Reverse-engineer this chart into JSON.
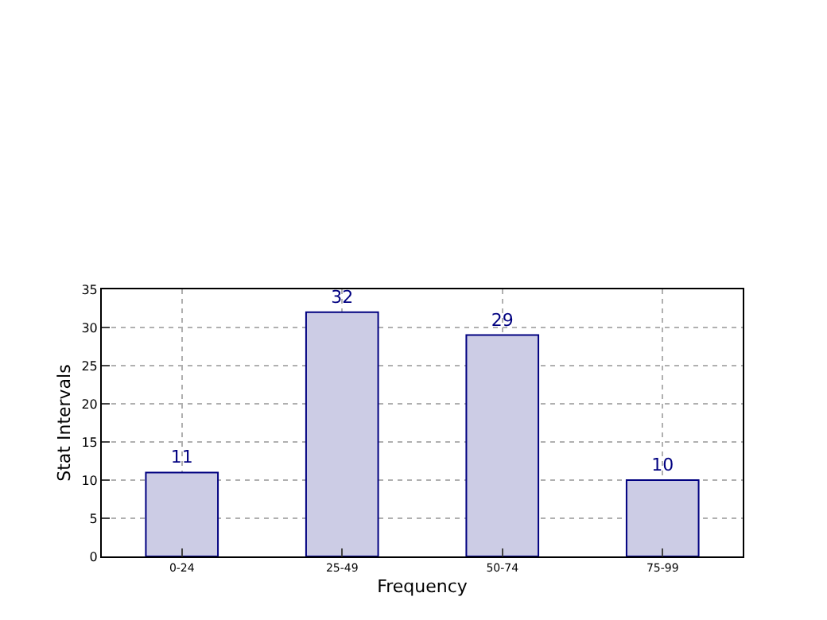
{
  "chart_data": {
    "type": "bar",
    "xlabel": "Frequency",
    "ylabel": "Stat Intervals",
    "categories": [
      "0-24",
      "25-49",
      "50-74",
      "75-99"
    ],
    "values": [
      11,
      32,
      29,
      10
    ],
    "color": "#cccce5",
    "ylim": [
      0,
      35
    ],
    "yticks": [
      0,
      5,
      10,
      15,
      20,
      25,
      30,
      35
    ],
    "grid": true,
    "data_labels": true
  }
}
